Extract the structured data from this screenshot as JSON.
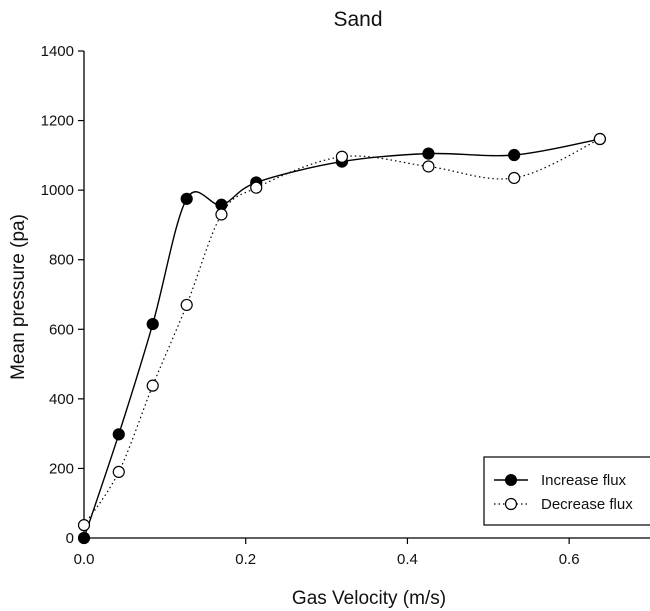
{
  "chart_data": {
    "type": "line",
    "title": "Sand",
    "xlabel": "Gas Velocity (m/s)",
    "ylabel": "Mean pressure (pa)",
    "xlim": [
      0.0,
      0.7
    ],
    "ylim": [
      0,
      1400
    ],
    "x_ticks": [
      "0.0",
      "0.2",
      "0.4",
      "0.6"
    ],
    "x_tick_values": [
      0.0,
      0.2,
      0.4,
      0.6
    ],
    "y_ticks": [
      "0",
      "200",
      "400",
      "600",
      "800",
      "1000",
      "1200",
      "1400"
    ],
    "y_tick_values": [
      0,
      200,
      400,
      600,
      800,
      1000,
      1200,
      1400
    ],
    "grid": false,
    "legend_position": "bottom-right",
    "series": [
      {
        "name": "Increase flux",
        "marker": "filled-circle",
        "line_style": "solid",
        "color": "#000000",
        "x": [
          0.0,
          0.043,
          0.085,
          0.127,
          0.17,
          0.213,
          0.319,
          0.426,
          0.532,
          0.638
        ],
        "y": [
          0,
          298,
          615,
          975,
          958,
          1022,
          1082,
          1105,
          1101,
          1147
        ]
      },
      {
        "name": "Decrease flux",
        "marker": "open-circle",
        "line_style": "dotted",
        "color": "#000000",
        "x": [
          0.0,
          0.043,
          0.085,
          0.127,
          0.17,
          0.213,
          0.319,
          0.426,
          0.532,
          0.638
        ],
        "y": [
          37,
          190,
          438,
          670,
          930,
          1007,
          1096,
          1068,
          1035,
          1147
        ]
      }
    ]
  }
}
